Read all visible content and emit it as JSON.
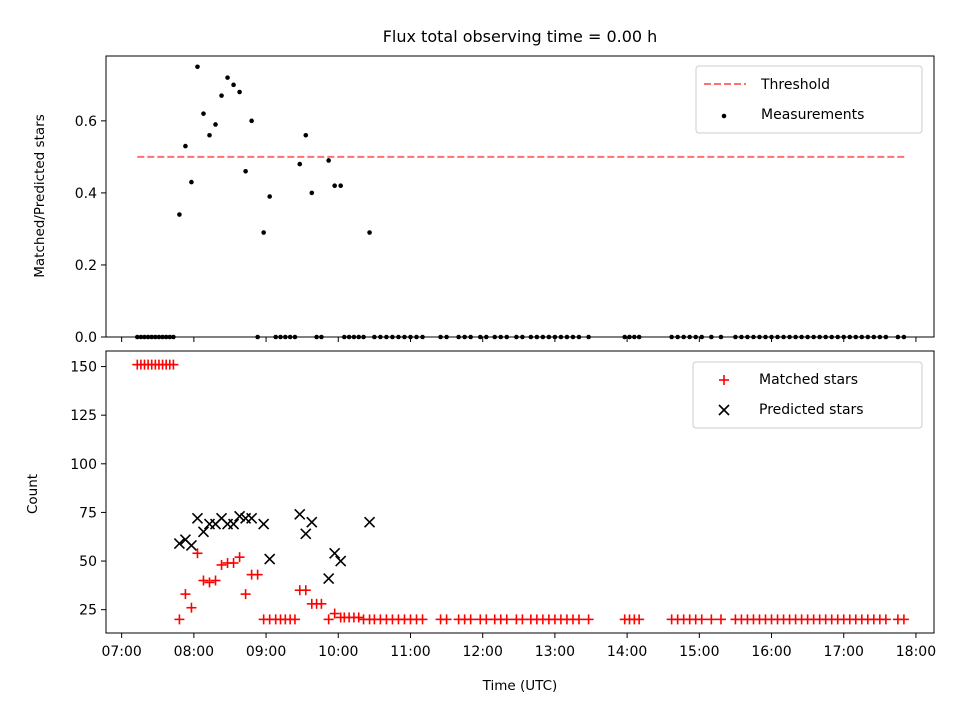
{
  "figure_title": "Flux total observing time = 0.00 h",
  "colors": {
    "threshold": "#ff7070",
    "measurement": "#000000",
    "matched": "#ff0000",
    "predicted": "#000000"
  },
  "chart_data": [
    {
      "type": "scatter",
      "title": "Flux total observing time = 0.00 h",
      "xlabel": "",
      "ylabel": "Matched/Predicted stars",
      "xlim": [
        "06:47",
        "18:15"
      ],
      "ylim": [
        0,
        0.78
      ],
      "yticks": [
        "0.0",
        "0.2",
        "0.4",
        "0.6"
      ],
      "legend_position": "top-right",
      "threshold": {
        "name": "Threshold",
        "value": 0.5,
        "x_range": [
          "07:13",
          "17:52"
        ]
      },
      "series": [
        {
          "name": "Measurements",
          "points": [
            [
              "07:13",
              0
            ],
            [
              "07:16",
              0
            ],
            [
              "07:19",
              0
            ],
            [
              "07:22",
              0
            ],
            [
              "07:25",
              0
            ],
            [
              "07:28",
              0
            ],
            [
              "07:31",
              0
            ],
            [
              "07:34",
              0
            ],
            [
              "07:37",
              0
            ],
            [
              "07:40",
              0
            ],
            [
              "07:43",
              0
            ],
            [
              "07:48",
              0.34
            ],
            [
              "07:53",
              0.53
            ],
            [
              "07:58",
              0.43
            ],
            [
              "08:03",
              0.75
            ],
            [
              "08:08",
              0.62
            ],
            [
              "08:13",
              0.56
            ],
            [
              "08:18",
              0.59
            ],
            [
              "08:23",
              0.67
            ],
            [
              "08:28",
              0.72
            ],
            [
              "08:33",
              0.7
            ],
            [
              "08:38",
              0.68
            ],
            [
              "08:43",
              0.46
            ],
            [
              "08:48",
              0.6
            ],
            [
              "08:53",
              0
            ],
            [
              "08:58",
              0.29
            ],
            [
              "09:03",
              0.39
            ],
            [
              "09:08",
              0
            ],
            [
              "09:12",
              0
            ],
            [
              "09:16",
              0
            ],
            [
              "09:20",
              0
            ],
            [
              "09:24",
              0
            ],
            [
              "09:28",
              0.48
            ],
            [
              "09:33",
              0.56
            ],
            [
              "09:38",
              0.4
            ],
            [
              "09:42",
              0
            ],
            [
              "09:46",
              0
            ],
            [
              "09:52",
              0.49
            ],
            [
              "09:57",
              0.42
            ],
            [
              "10:02",
              0.42
            ],
            [
              "10:05",
              0
            ],
            [
              "10:09",
              0
            ],
            [
              "10:13",
              0
            ],
            [
              "10:17",
              0
            ],
            [
              "10:21",
              0
            ],
            [
              "10:26",
              0.29
            ],
            [
              "10:30",
              0
            ],
            [
              "10:35",
              0
            ],
            [
              "10:40",
              0
            ],
            [
              "10:45",
              0
            ],
            [
              "10:50",
              0
            ],
            [
              "10:55",
              0
            ],
            [
              "11:00",
              0
            ],
            [
              "11:05",
              0
            ],
            [
              "11:10",
              0
            ],
            [
              "11:25",
              0
            ],
            [
              "11:30",
              0
            ],
            [
              "11:40",
              0
            ],
            [
              "11:45",
              0
            ],
            [
              "11:50",
              0
            ],
            [
              "11:58",
              0
            ],
            [
              "12:03",
              0
            ],
            [
              "12:10",
              0
            ],
            [
              "12:15",
              0
            ],
            [
              "12:20",
              0
            ],
            [
              "12:28",
              0
            ],
            [
              "12:33",
              0
            ],
            [
              "12:40",
              0
            ],
            [
              "12:45",
              0
            ],
            [
              "12:50",
              0
            ],
            [
              "12:55",
              0
            ],
            [
              "13:00",
              0
            ],
            [
              "13:05",
              0
            ],
            [
              "13:10",
              0
            ],
            [
              "13:15",
              0
            ],
            [
              "13:20",
              0
            ],
            [
              "13:28",
              0
            ],
            [
              "13:58",
              0
            ],
            [
              "14:02",
              0
            ],
            [
              "14:06",
              0
            ],
            [
              "14:10",
              0
            ],
            [
              "14:37",
              0
            ],
            [
              "14:42",
              0
            ],
            [
              "14:47",
              0
            ],
            [
              "14:52",
              0
            ],
            [
              "14:57",
              0
            ],
            [
              "15:02",
              0
            ],
            [
              "15:10",
              0
            ],
            [
              "15:18",
              0
            ],
            [
              "15:30",
              0
            ],
            [
              "15:35",
              0
            ],
            [
              "15:40",
              0
            ],
            [
              "15:45",
              0
            ],
            [
              "15:50",
              0
            ],
            [
              "15:55",
              0
            ],
            [
              "16:00",
              0
            ],
            [
              "16:05",
              0
            ],
            [
              "16:10",
              0
            ],
            [
              "16:15",
              0
            ],
            [
              "16:20",
              0
            ],
            [
              "16:25",
              0
            ],
            [
              "16:30",
              0
            ],
            [
              "16:35",
              0
            ],
            [
              "16:40",
              0
            ],
            [
              "16:45",
              0
            ],
            [
              "16:50",
              0
            ],
            [
              "16:55",
              0
            ],
            [
              "17:00",
              0
            ],
            [
              "17:05",
              0
            ],
            [
              "17:10",
              0
            ],
            [
              "17:15",
              0
            ],
            [
              "17:20",
              0
            ],
            [
              "17:25",
              0
            ],
            [
              "17:30",
              0
            ],
            [
              "17:35",
              0
            ],
            [
              "17:45",
              0
            ],
            [
              "17:50",
              0
            ]
          ]
        }
      ]
    },
    {
      "type": "scatter",
      "title": "",
      "xlabel": "Time (UTC)",
      "ylabel": "Count",
      "xlim": [
        "06:47",
        "18:15"
      ],
      "ylim": [
        13,
        158
      ],
      "xticks": [
        "07:00",
        "08:00",
        "09:00",
        "10:00",
        "11:00",
        "12:00",
        "13:00",
        "14:00",
        "15:00",
        "16:00",
        "17:00",
        "18:00"
      ],
      "yticks": [
        "25",
        "50",
        "75",
        "100",
        "125",
        "150"
      ],
      "legend_position": "top-right",
      "series": [
        {
          "name": "Matched stars",
          "marker": "+",
          "points": [
            [
              "07:13",
              151
            ],
            [
              "07:16",
              151
            ],
            [
              "07:19",
              151
            ],
            [
              "07:22",
              151
            ],
            [
              "07:25",
              151
            ],
            [
              "07:28",
              151
            ],
            [
              "07:31",
              151
            ],
            [
              "07:34",
              151
            ],
            [
              "07:37",
              151
            ],
            [
              "07:40",
              151
            ],
            [
              "07:43",
              151
            ],
            [
              "07:48",
              20
            ],
            [
              "07:53",
              33
            ],
            [
              "07:58",
              26
            ],
            [
              "08:03",
              54
            ],
            [
              "08:08",
              40
            ],
            [
              "08:13",
              39
            ],
            [
              "08:18",
              40
            ],
            [
              "08:23",
              48
            ],
            [
              "08:28",
              49
            ],
            [
              "08:33",
              49
            ],
            [
              "08:38",
              52
            ],
            [
              "08:43",
              33
            ],
            [
              "08:48",
              43
            ],
            [
              "08:53",
              43
            ],
            [
              "08:58",
              20
            ],
            [
              "09:03",
              20
            ],
            [
              "09:08",
              20
            ],
            [
              "09:12",
              20
            ],
            [
              "09:16",
              20
            ],
            [
              "09:20",
              20
            ],
            [
              "09:24",
              20
            ],
            [
              "09:28",
              35
            ],
            [
              "09:33",
              35
            ],
            [
              "09:38",
              28
            ],
            [
              "09:42",
              28
            ],
            [
              "09:46",
              28
            ],
            [
              "09:52",
              20
            ],
            [
              "09:57",
              23
            ],
            [
              "10:02",
              21
            ],
            [
              "10:05",
              21
            ],
            [
              "10:09",
              21
            ],
            [
              "10:13",
              21
            ],
            [
              "10:17",
              21
            ],
            [
              "10:21",
              20
            ],
            [
              "10:26",
              20
            ],
            [
              "10:30",
              20
            ],
            [
              "10:35",
              20
            ],
            [
              "10:40",
              20
            ],
            [
              "10:45",
              20
            ],
            [
              "10:50",
              20
            ],
            [
              "10:55",
              20
            ],
            [
              "11:00",
              20
            ],
            [
              "11:05",
              20
            ],
            [
              "11:10",
              20
            ],
            [
              "11:25",
              20
            ],
            [
              "11:30",
              20
            ],
            [
              "11:40",
              20
            ],
            [
              "11:45",
              20
            ],
            [
              "11:50",
              20
            ],
            [
              "11:58",
              20
            ],
            [
              "12:03",
              20
            ],
            [
              "12:10",
              20
            ],
            [
              "12:15",
              20
            ],
            [
              "12:20",
              20
            ],
            [
              "12:28",
              20
            ],
            [
              "12:33",
              20
            ],
            [
              "12:40",
              20
            ],
            [
              "12:45",
              20
            ],
            [
              "12:50",
              20
            ],
            [
              "12:55",
              20
            ],
            [
              "13:00",
              20
            ],
            [
              "13:05",
              20
            ],
            [
              "13:10",
              20
            ],
            [
              "13:15",
              20
            ],
            [
              "13:20",
              20
            ],
            [
              "13:28",
              20
            ],
            [
              "13:58",
              20
            ],
            [
              "14:02",
              20
            ],
            [
              "14:06",
              20
            ],
            [
              "14:10",
              20
            ],
            [
              "14:37",
              20
            ],
            [
              "14:42",
              20
            ],
            [
              "14:47",
              20
            ],
            [
              "14:52",
              20
            ],
            [
              "14:57",
              20
            ],
            [
              "15:02",
              20
            ],
            [
              "15:10",
              20
            ],
            [
              "15:18",
              20
            ],
            [
              "15:30",
              20
            ],
            [
              "15:35",
              20
            ],
            [
              "15:40",
              20
            ],
            [
              "15:45",
              20
            ],
            [
              "15:50",
              20
            ],
            [
              "15:55",
              20
            ],
            [
              "16:00",
              20
            ],
            [
              "16:05",
              20
            ],
            [
              "16:10",
              20
            ],
            [
              "16:15",
              20
            ],
            [
              "16:20",
              20
            ],
            [
              "16:25",
              20
            ],
            [
              "16:30",
              20
            ],
            [
              "16:35",
              20
            ],
            [
              "16:40",
              20
            ],
            [
              "16:45",
              20
            ],
            [
              "16:50",
              20
            ],
            [
              "16:55",
              20
            ],
            [
              "17:00",
              20
            ],
            [
              "17:05",
              20
            ],
            [
              "17:10",
              20
            ],
            [
              "17:15",
              20
            ],
            [
              "17:20",
              20
            ],
            [
              "17:25",
              20
            ],
            [
              "17:30",
              20
            ],
            [
              "17:35",
              20
            ],
            [
              "17:45",
              20
            ],
            [
              "17:50",
              20
            ]
          ]
        },
        {
          "name": "Predicted stars",
          "marker": "x",
          "points": [
            [
              "07:48",
              59
            ],
            [
              "07:53",
              61
            ],
            [
              "07:58",
              58
            ],
            [
              "08:03",
              72
            ],
            [
              "08:08",
              65
            ],
            [
              "08:13",
              69
            ],
            [
              "08:18",
              69
            ],
            [
              "08:23",
              72
            ],
            [
              "08:28",
              69
            ],
            [
              "08:33",
              69
            ],
            [
              "08:38",
              73
            ],
            [
              "08:43",
              72
            ],
            [
              "08:48",
              72
            ],
            [
              "08:58",
              69
            ],
            [
              "09:03",
              51
            ],
            [
              "09:28",
              74
            ],
            [
              "09:33",
              64
            ],
            [
              "09:38",
              70
            ],
            [
              "09:52",
              41
            ],
            [
              "09:57",
              54
            ],
            [
              "10:02",
              50
            ],
            [
              "10:26",
              70
            ]
          ]
        }
      ]
    }
  ]
}
